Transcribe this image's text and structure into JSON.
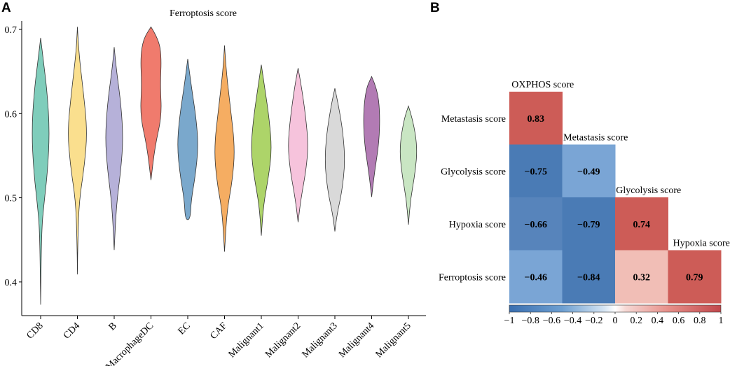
{
  "panels": {
    "a": "A",
    "b": "B"
  },
  "chart_data": [
    {
      "type": "violin",
      "title": "Ferroptosis score",
      "xlabel": "",
      "ylabel": "",
      "ylim": [
        0.36,
        0.71
      ],
      "yticks": [
        "0.4",
        "0.5",
        "0.6",
        "0.7"
      ],
      "categories": [
        "CD8",
        "CD4",
        "B",
        "MacrophageDC",
        "EC",
        "CAF",
        "Malignant1",
        "Malignant2",
        "Malignant3",
        "Malignant4",
        "Malignant5"
      ],
      "colors": [
        "#7fcdbb",
        "#fadf8e",
        "#b6b1d9",
        "#f07b6d",
        "#7aa8cc",
        "#f5ad62",
        "#add469",
        "#f6c3dc",
        "#d9d9d9",
        "#b27bb4",
        "#c9e6c3"
      ],
      "ranges": [
        [
          0.373,
          0.69
        ],
        [
          0.409,
          0.703
        ],
        [
          0.438,
          0.679
        ],
        [
          0.521,
          0.703
        ],
        [
          0.474,
          0.665
        ],
        [
          0.436,
          0.681
        ],
        [
          0.455,
          0.658
        ],
        [
          0.471,
          0.654
        ],
        [
          0.46,
          0.63
        ],
        [
          0.501,
          0.644
        ],
        [
          0.468,
          0.609
        ]
      ]
    },
    {
      "type": "heatmap",
      "title": "",
      "row_labels": [
        "Metastasis score",
        "Glycolysis score",
        "Hypoxia score",
        "Ferroptosis score"
      ],
      "col_labels": [
        "OXPHOS score",
        "Metastasis score",
        "Glycolysis score",
        "Hypoxia score"
      ],
      "values": [
        [
          0.83,
          null,
          null,
          null
        ],
        [
          -0.75,
          -0.49,
          null,
          null
        ],
        [
          -0.66,
          -0.79,
          0.74,
          null
        ],
        [
          -0.46,
          -0.84,
          0.32,
          0.79
        ]
      ],
      "value_labels": [
        [
          "0.83",
          "",
          "",
          ""
        ],
        [
          "−0.75",
          "−0.49",
          "",
          ""
        ],
        [
          "−0.66",
          "−0.79",
          "0.74",
          ""
        ],
        [
          "−0.46",
          "−0.84",
          "0.32",
          "0.79"
        ]
      ],
      "colorbar": {
        "range": [
          -1,
          1
        ],
        "ticks": [
          "−1",
          "−0.8",
          "−0.6",
          "−0.4",
          "−0.2",
          "0",
          "0.2",
          "0.4",
          "0.6",
          "0.8",
          "1"
        ]
      }
    }
  ]
}
